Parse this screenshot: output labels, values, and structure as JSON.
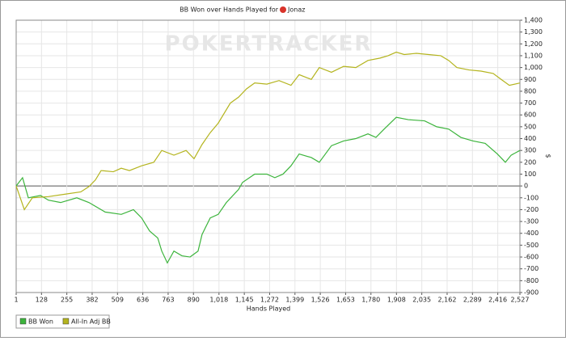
{
  "chart_data": {
    "type": "line",
    "title": "BB Won over Hands Played for",
    "player": "Jonaz",
    "watermark": "POKERTRACKER",
    "x_label": "Hands Played",
    "y_label": "$",
    "xlim": [
      1,
      2527
    ],
    "ylim": [
      -900,
      1400
    ],
    "xticks": [
      1,
      128,
      255,
      382,
      509,
      636,
      763,
      890,
      {
        "value": 1018,
        "label": "1,018"
      },
      {
        "value": 1145,
        "label": "1,145"
      },
      {
        "value": 1272,
        "label": "1,272"
      },
      {
        "value": 1399,
        "label": "1,399"
      },
      {
        "value": 1526,
        "label": "1,526"
      },
      {
        "value": 1653,
        "label": "1,653"
      },
      {
        "value": 1780,
        "label": "1,780"
      },
      {
        "value": 1908,
        "label": "1,908"
      },
      {
        "value": 2035,
        "label": "2,035"
      },
      {
        "value": 2162,
        "label": "2,162"
      },
      {
        "value": 2289,
        "label": "2,289"
      },
      {
        "value": 2416,
        "label": "2,416"
      },
      {
        "value": 2527,
        "label": "2,527"
      }
    ],
    "yticks": [
      {
        "value": 1400,
        "label": "1,400"
      },
      {
        "value": 1300,
        "label": "1,300"
      },
      {
        "value": 1200,
        "label": "1,200"
      },
      {
        "value": 1100,
        "label": "1,100"
      },
      {
        "value": 1000,
        "label": "1,000"
      },
      900,
      800,
      700,
      600,
      500,
      400,
      300,
      200,
      100,
      0,
      -100,
      -200,
      -300,
      -400,
      -500,
      -600,
      -700,
      -800,
      -900
    ],
    "grid": true,
    "series": [
      {
        "name": "BB Won",
        "color": "#3cb43c",
        "x": [
          1,
          33,
          62,
          123,
          163,
          224,
          305,
          366,
          447,
          528,
          589,
          630,
          670,
          711,
          731,
          759,
          792,
          832,
          873,
          913,
          933,
          974,
          1014,
          1055,
          1116,
          1136,
          1197,
          1258,
          1298,
          1339,
          1379,
          1420,
          1481,
          1521,
          1582,
          1643,
          1704,
          1765,
          1805,
          1846,
          1907,
          1967,
          2049,
          2110,
          2170,
          2231,
          2292,
          2353,
          2414,
          2454,
          2483,
          2527
        ],
        "values": [
          0,
          70,
          -100,
          -80,
          -120,
          -140,
          -100,
          -140,
          -220,
          -240,
          -200,
          -270,
          -380,
          -440,
          -550,
          -650,
          -550,
          -590,
          -600,
          -550,
          -410,
          -270,
          -240,
          -140,
          -30,
          30,
          100,
          100,
          70,
          100,
          170,
          270,
          240,
          200,
          340,
          380,
          400,
          440,
          410,
          480,
          580,
          560,
          550,
          500,
          480,
          410,
          380,
          360,
          270,
          200,
          260,
          300
        ]
      },
      {
        "name": "All-In Adj BB",
        "color": "#b4b41e",
        "x": [
          1,
          42,
          82,
          163,
          244,
          325,
          366,
          398,
          427,
          488,
          528,
          569,
          630,
          691,
          731,
          792,
          853,
          893,
          933,
          974,
          1014,
          1075,
          1116,
          1156,
          1197,
          1258,
          1319,
          1379,
          1420,
          1481,
          1521,
          1582,
          1643,
          1704,
          1765,
          1826,
          1866,
          1907,
          1947,
          2008,
          2069,
          2130,
          2170,
          2211,
          2272,
          2332,
          2393,
          2433,
          2474,
          2527
        ],
        "values": [
          0,
          -200,
          -100,
          -90,
          -70,
          -50,
          -5,
          50,
          130,
          120,
          150,
          130,
          170,
          200,
          300,
          260,
          300,
          230,
          350,
          450,
          530,
          700,
          750,
          820,
          870,
          860,
          890,
          850,
          940,
          900,
          1000,
          960,
          1010,
          1000,
          1060,
          1080,
          1100,
          1130,
          1110,
          1120,
          1110,
          1100,
          1060,
          1000,
          980,
          970,
          950,
          900,
          850,
          870
        ]
      }
    ]
  }
}
